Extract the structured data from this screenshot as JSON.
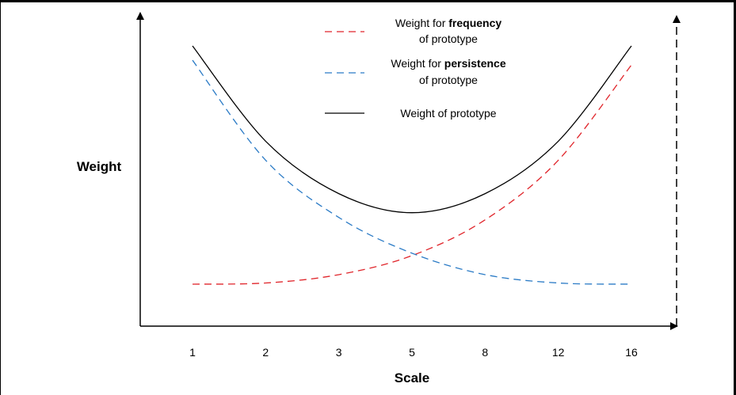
{
  "chart_data": {
    "type": "line",
    "categories": [
      "1",
      "2",
      "3",
      "5",
      "8",
      "12",
      "16"
    ],
    "xlabel": "Scale",
    "ylabel": "Weight",
    "series": [
      {
        "name_parts": [
          "Weight for ",
          "frequency",
          "of prototype"
        ],
        "name": "Weight for frequency of prototype",
        "color": "#e0252b",
        "dash": "dashed",
        "values": [
          0.0,
          0.005,
          0.04,
          0.12,
          0.27,
          0.52,
          0.92
        ]
      },
      {
        "name_parts": [
          "Weight for ",
          "persistence",
          "of prototype"
        ],
        "name": "Weight for persistence of prototype",
        "color": "#2b7bc6",
        "dash": "dashed",
        "values": [
          0.94,
          0.52,
          0.28,
          0.13,
          0.04,
          0.005,
          0.0
        ]
      },
      {
        "name": "Weight of prototype",
        "color": "#000000",
        "dash": "solid",
        "values": [
          1.0,
          0.6,
          0.38,
          0.3,
          0.38,
          0.6,
          1.0
        ]
      }
    ],
    "ylim": [
      0,
      1.08
    ],
    "legend_position": "top-center",
    "grid": false
  }
}
